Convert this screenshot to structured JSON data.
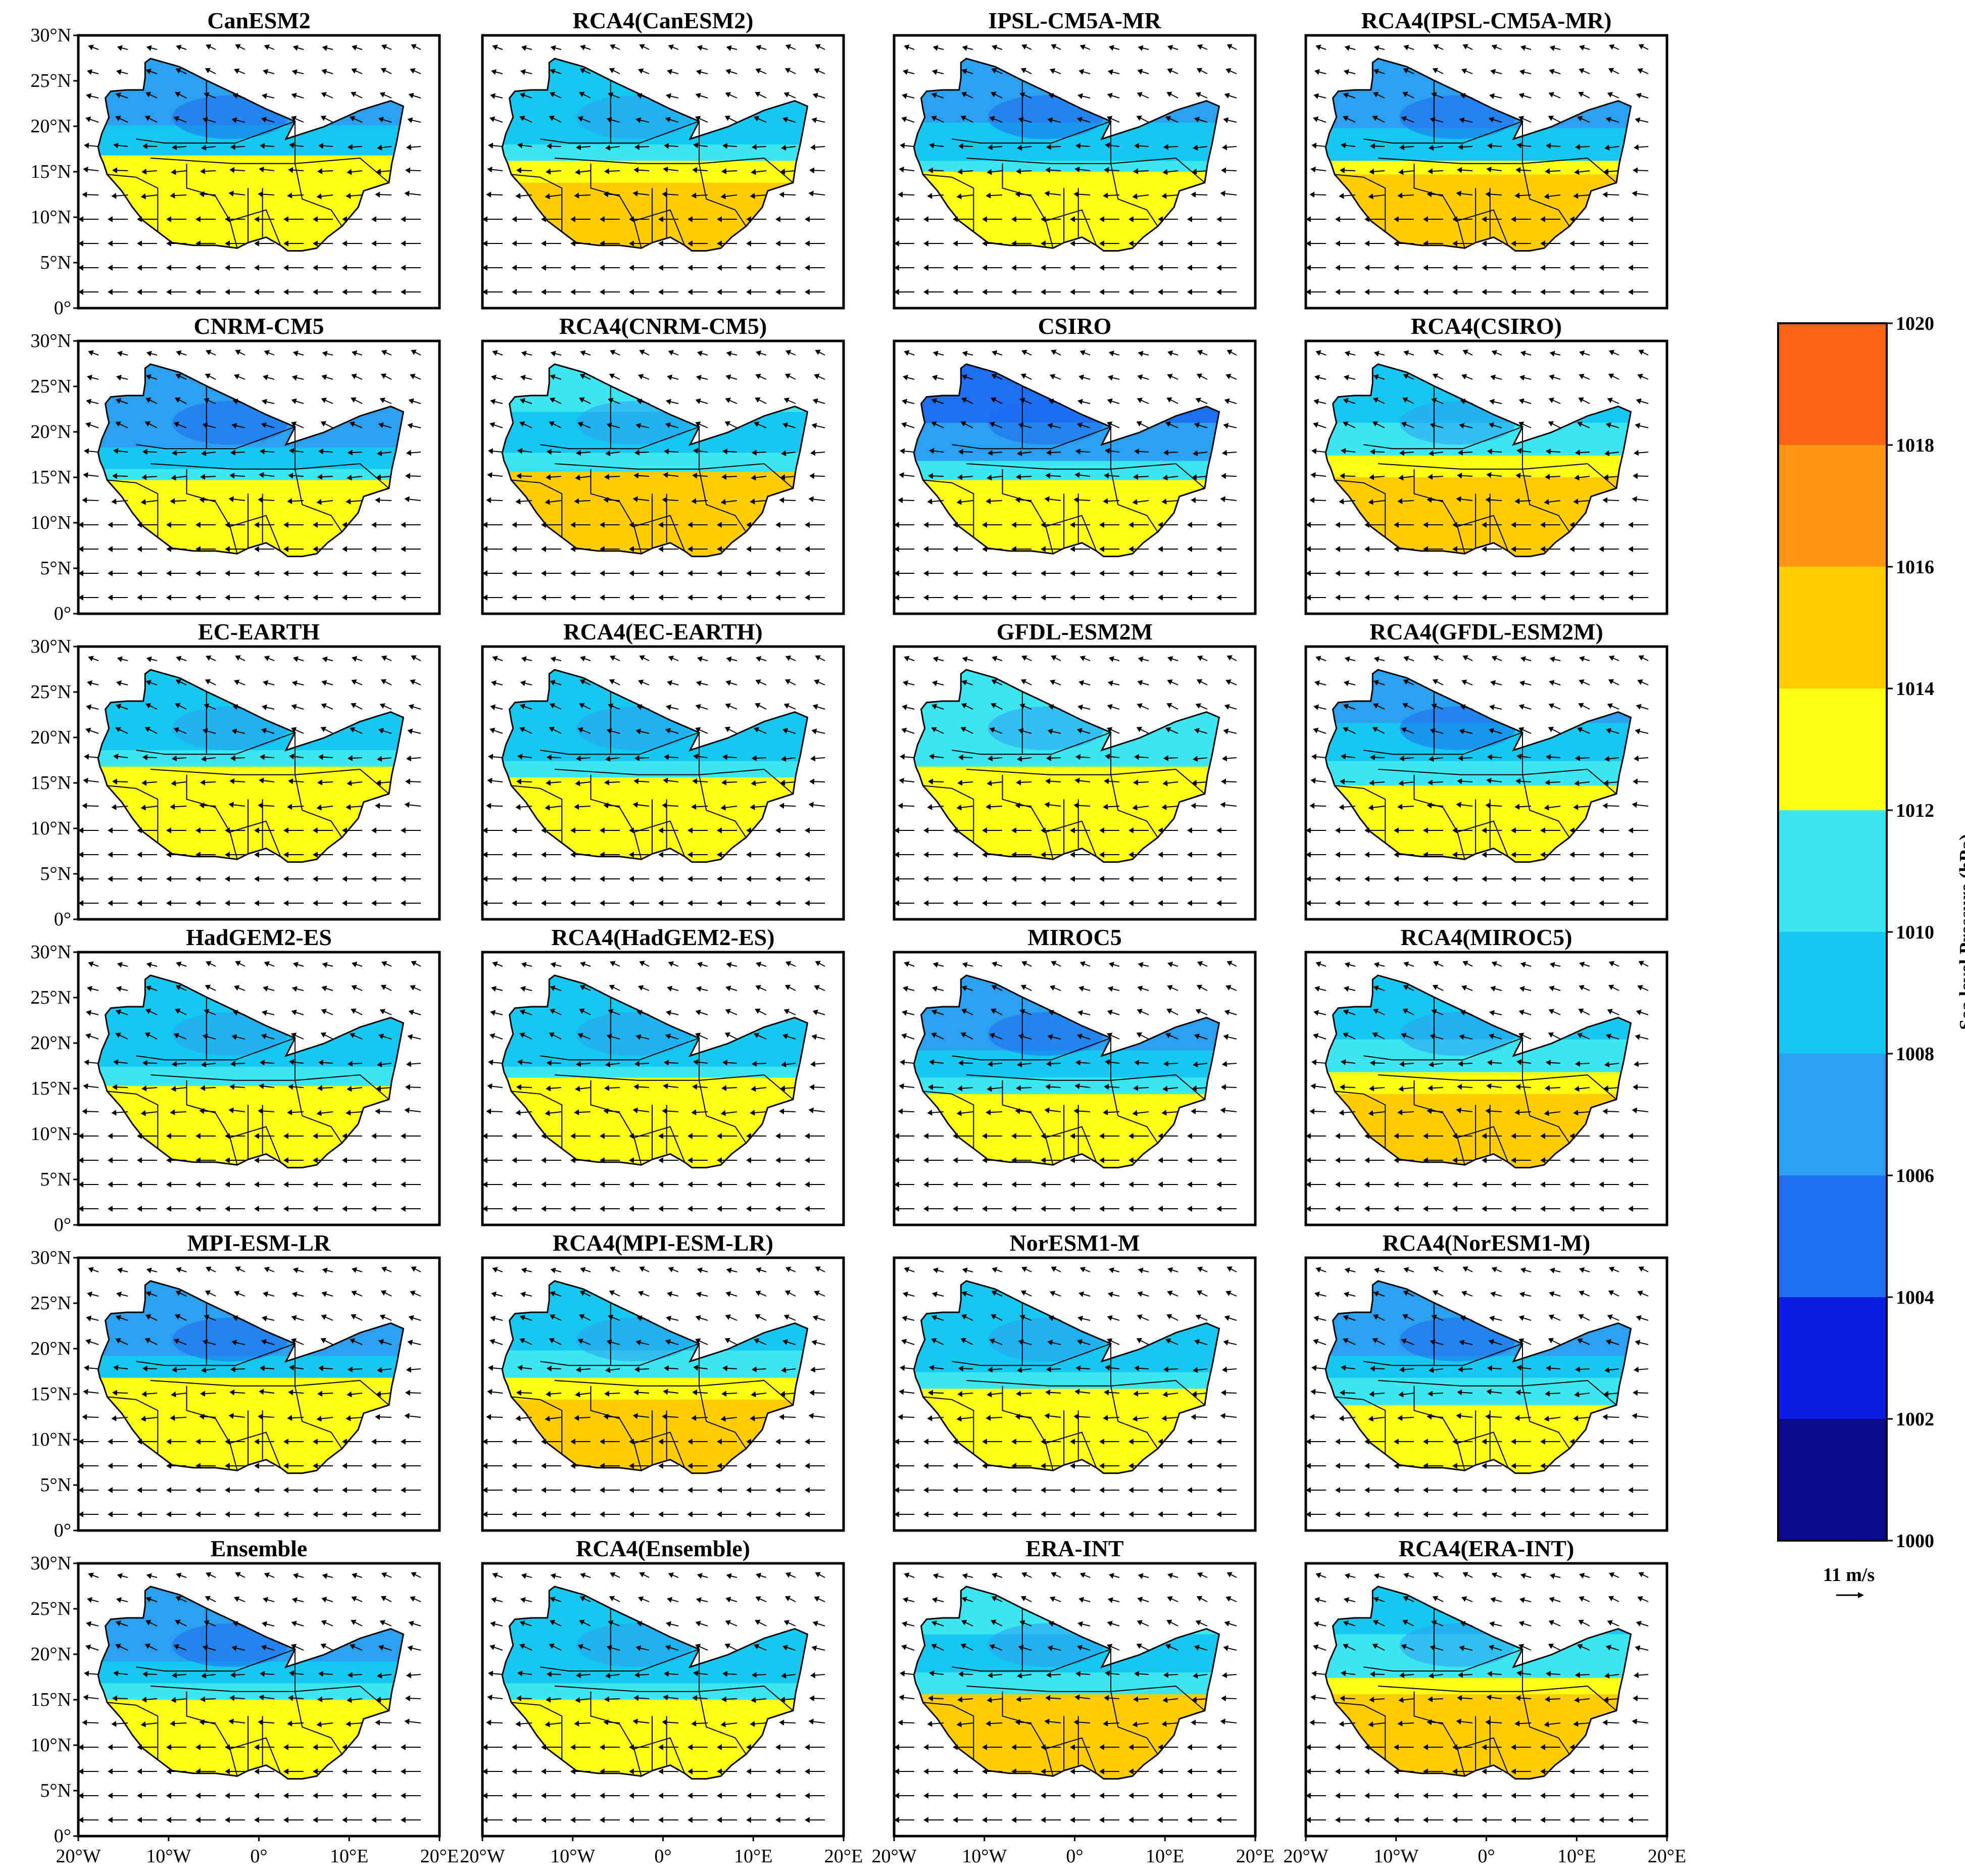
{
  "panels": [
    {
      "title": "CanESM2"
    },
    {
      "title": "RCA4(CanESM2)"
    },
    {
      "title": "IPSL-CM5A-MR"
    },
    {
      "title": "RCA4(IPSL-CM5A-MR)"
    },
    {
      "title": "CNRM-CM5"
    },
    {
      "title": "RCA4(CNRM-CM5)"
    },
    {
      "title": "CSIRO"
    },
    {
      "title": "RCA4(CSIRO)"
    },
    {
      "title": "EC-EARTH"
    },
    {
      "title": "RCA4(EC-EARTH)"
    },
    {
      "title": "GFDL-ESM2M"
    },
    {
      "title": "RCA4(GFDL-ESM2M)"
    },
    {
      "title": "HadGEM2-ES"
    },
    {
      "title": "RCA4(HadGEM2-ES)"
    },
    {
      "title": "MIROC5"
    },
    {
      "title": "RCA4(MIROC5)"
    },
    {
      "title": "MPI-ESM-LR"
    },
    {
      "title": "RCA4(MPI-ESM-LR)"
    },
    {
      "title": "NorESM1-M"
    },
    {
      "title": "RCA4(NorESM1-M)"
    },
    {
      "title": "Ensemble"
    },
    {
      "title": "RCA4(Ensemble)"
    },
    {
      "title": "ERA-INT"
    },
    {
      "title": "RCA4(ERA-INT)"
    }
  ],
  "axes": {
    "y_ticks": [
      "30°N",
      "25°N",
      "20°N",
      "15°N",
      "10°N",
      "5°N",
      "0°"
    ],
    "x_ticks": [
      "20°W",
      "10°W",
      "0°",
      "10°E",
      "20°E"
    ]
  },
  "colorbar": {
    "label": "Sea level Pressure (hPa)",
    "ticks": [
      "1000",
      "1002",
      "1004",
      "1006",
      "1008",
      "1010",
      "1012",
      "1014",
      "1016",
      "1018",
      "1020"
    ],
    "colors": [
      "#0a0a8c",
      "#0a1ee6",
      "#1e6ef0",
      "#2aa0ee",
      "#14c8f0",
      "#3ce6f0",
      "#ffff14",
      "#ffcc00",
      "#ff9614",
      "#ff6414",
      "#ff2814"
    ]
  },
  "vector_key": {
    "label": "11 m/s"
  },
  "chart_data": {
    "type": "heatmap",
    "description_variable": "Sea level Pressure (hPa) with wind vectors",
    "grid": "6 rows x 4 columns",
    "lon_range": [
      -20,
      20
    ],
    "lat_range": [
      0,
      30
    ],
    "levels": [
      1000,
      1002,
      1004,
      1006,
      1008,
      1010,
      1012,
      1014,
      1016,
      1018,
      1020
    ],
    "vector_reference": "11 m/s",
    "panels": [
      "CanESM2",
      "RCA4(CanESM2)",
      "IPSL-CM5A-MR",
      "RCA4(IPSL-CM5A-MR)",
      "CNRM-CM5",
      "RCA4(CNRM-CM5)",
      "CSIRO",
      "RCA4(CSIRO)",
      "EC-EARTH",
      "RCA4(EC-EARTH)",
      "GFDL-ESM2M",
      "RCA4(GFDL-ESM2M)",
      "HadGEM2-ES",
      "RCA4(HadGEM2-ES)",
      "MIROC5",
      "RCA4(MIROC5)",
      "MPI-ESM-LR",
      "RCA4(MPI-ESM-LR)",
      "NorESM1-M",
      "RCA4(NorESM1-M)",
      "Ensemble",
      "RCA4(Ensemble)",
      "ERA-INT",
      "RCA4(ERA-INT)"
    ]
  }
}
